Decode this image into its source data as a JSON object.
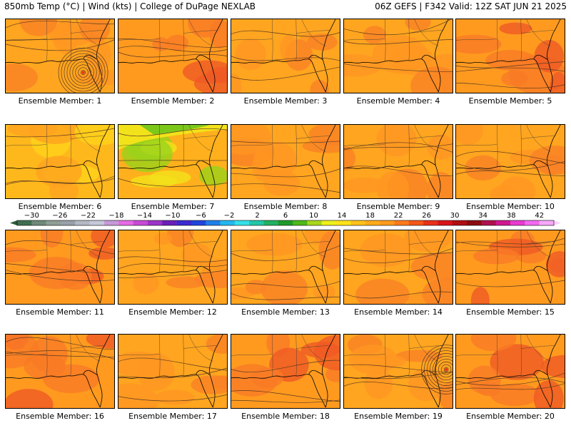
{
  "header": {
    "left": "850mb Temp (°C) | Wind (kts) | College of DuPage NEXLAB",
    "right": "06Z GEFS | F342 Valid: 12Z SAT JUN 21 2025"
  },
  "members": [
    {
      "label": "Ensemble Member: 1",
      "variant": "warm",
      "hurricane": true
    },
    {
      "label": "Ensemble Member: 2",
      "variant": "hot",
      "hurricane": false
    },
    {
      "label": "Ensemble Member: 3",
      "variant": "warm",
      "hurricane": false
    },
    {
      "label": "Ensemble Member: 4",
      "variant": "warm",
      "hurricane": false
    },
    {
      "label": "Ensemble Member: 5",
      "variant": "hot",
      "hurricane": false
    },
    {
      "label": "Ensemble Member: 6",
      "variant": "mild",
      "hurricane": false
    },
    {
      "label": "Ensemble Member: 7",
      "variant": "cool",
      "hurricane": false
    },
    {
      "label": "Ensemble Member: 8",
      "variant": "warm",
      "hurricane": false
    },
    {
      "label": "Ensemble Member: 9",
      "variant": "warm",
      "hurricane": false
    },
    {
      "label": "Ensemble Member: 10",
      "variant": "warm",
      "hurricane": false
    },
    {
      "label": "Ensemble Member: 11",
      "variant": "hot",
      "hurricane": false
    },
    {
      "label": "Ensemble Member: 12",
      "variant": "warm",
      "hurricane": false
    },
    {
      "label": "Ensemble Member: 13",
      "variant": "warm",
      "hurricane": false
    },
    {
      "label": "Ensemble Member: 14",
      "variant": "warm",
      "hurricane": false
    },
    {
      "label": "Ensemble Member: 15",
      "variant": "hot",
      "hurricane": false
    },
    {
      "label": "Ensemble Member: 16",
      "variant": "hot",
      "hurricane": false
    },
    {
      "label": "Ensemble Member: 17",
      "variant": "warm",
      "hurricane": false
    },
    {
      "label": "Ensemble Member: 18",
      "variant": "hot",
      "hurricane": false
    },
    {
      "label": "Ensemble Member: 19",
      "variant": "warm",
      "hurricane": true
    },
    {
      "label": "Ensemble Member: 20",
      "variant": "hot",
      "hurricane": false
    }
  ],
  "colorbar": {
    "ticks": [
      "-30",
      "-26",
      "-22",
      "-18",
      "-14",
      "-10",
      "-6",
      "-2",
      "2",
      "6",
      "10",
      "14",
      "18",
      "22",
      "26",
      "30",
      "34",
      "38",
      "42"
    ],
    "colors": [
      "#3f6f4f",
      "#6f8a78",
      "#8e9e94",
      "#9aa0a8",
      "#b5b9c4",
      "#c6c9d9",
      "#c69ad9",
      "#e56be5",
      "#c84ad6",
      "#9c34c8",
      "#6a1fb8",
      "#3a2ad0",
      "#2244dd",
      "#1f7fe8",
      "#22b8f0",
      "#33e0e8",
      "#22c8a8",
      "#22b060",
      "#1f9a2a",
      "#4fb81a",
      "#a8d81a",
      "#eef01a",
      "#ffe31a",
      "#ffc21a",
      "#ffab1a",
      "#ff9a1a",
      "#ff7a1a",
      "#f5561a",
      "#e8301a",
      "#d8141a",
      "#b00f12",
      "#8a0a10",
      "#b01050",
      "#d01890",
      "#e83ad0",
      "#f26af0",
      "#f8a8f8"
    ]
  },
  "palette": {
    "warm": [
      "#ffa51f",
      "#ff9622",
      "#f98226"
    ],
    "hot": [
      "#ff9a1f",
      "#f97a26",
      "#ef5a24"
    ],
    "mild": [
      "#ffb81c",
      "#ffa21f",
      "#ffd21a"
    ],
    "cool": [
      "#ffb01c",
      "#f2e21a",
      "#9ad21a"
    ]
  }
}
